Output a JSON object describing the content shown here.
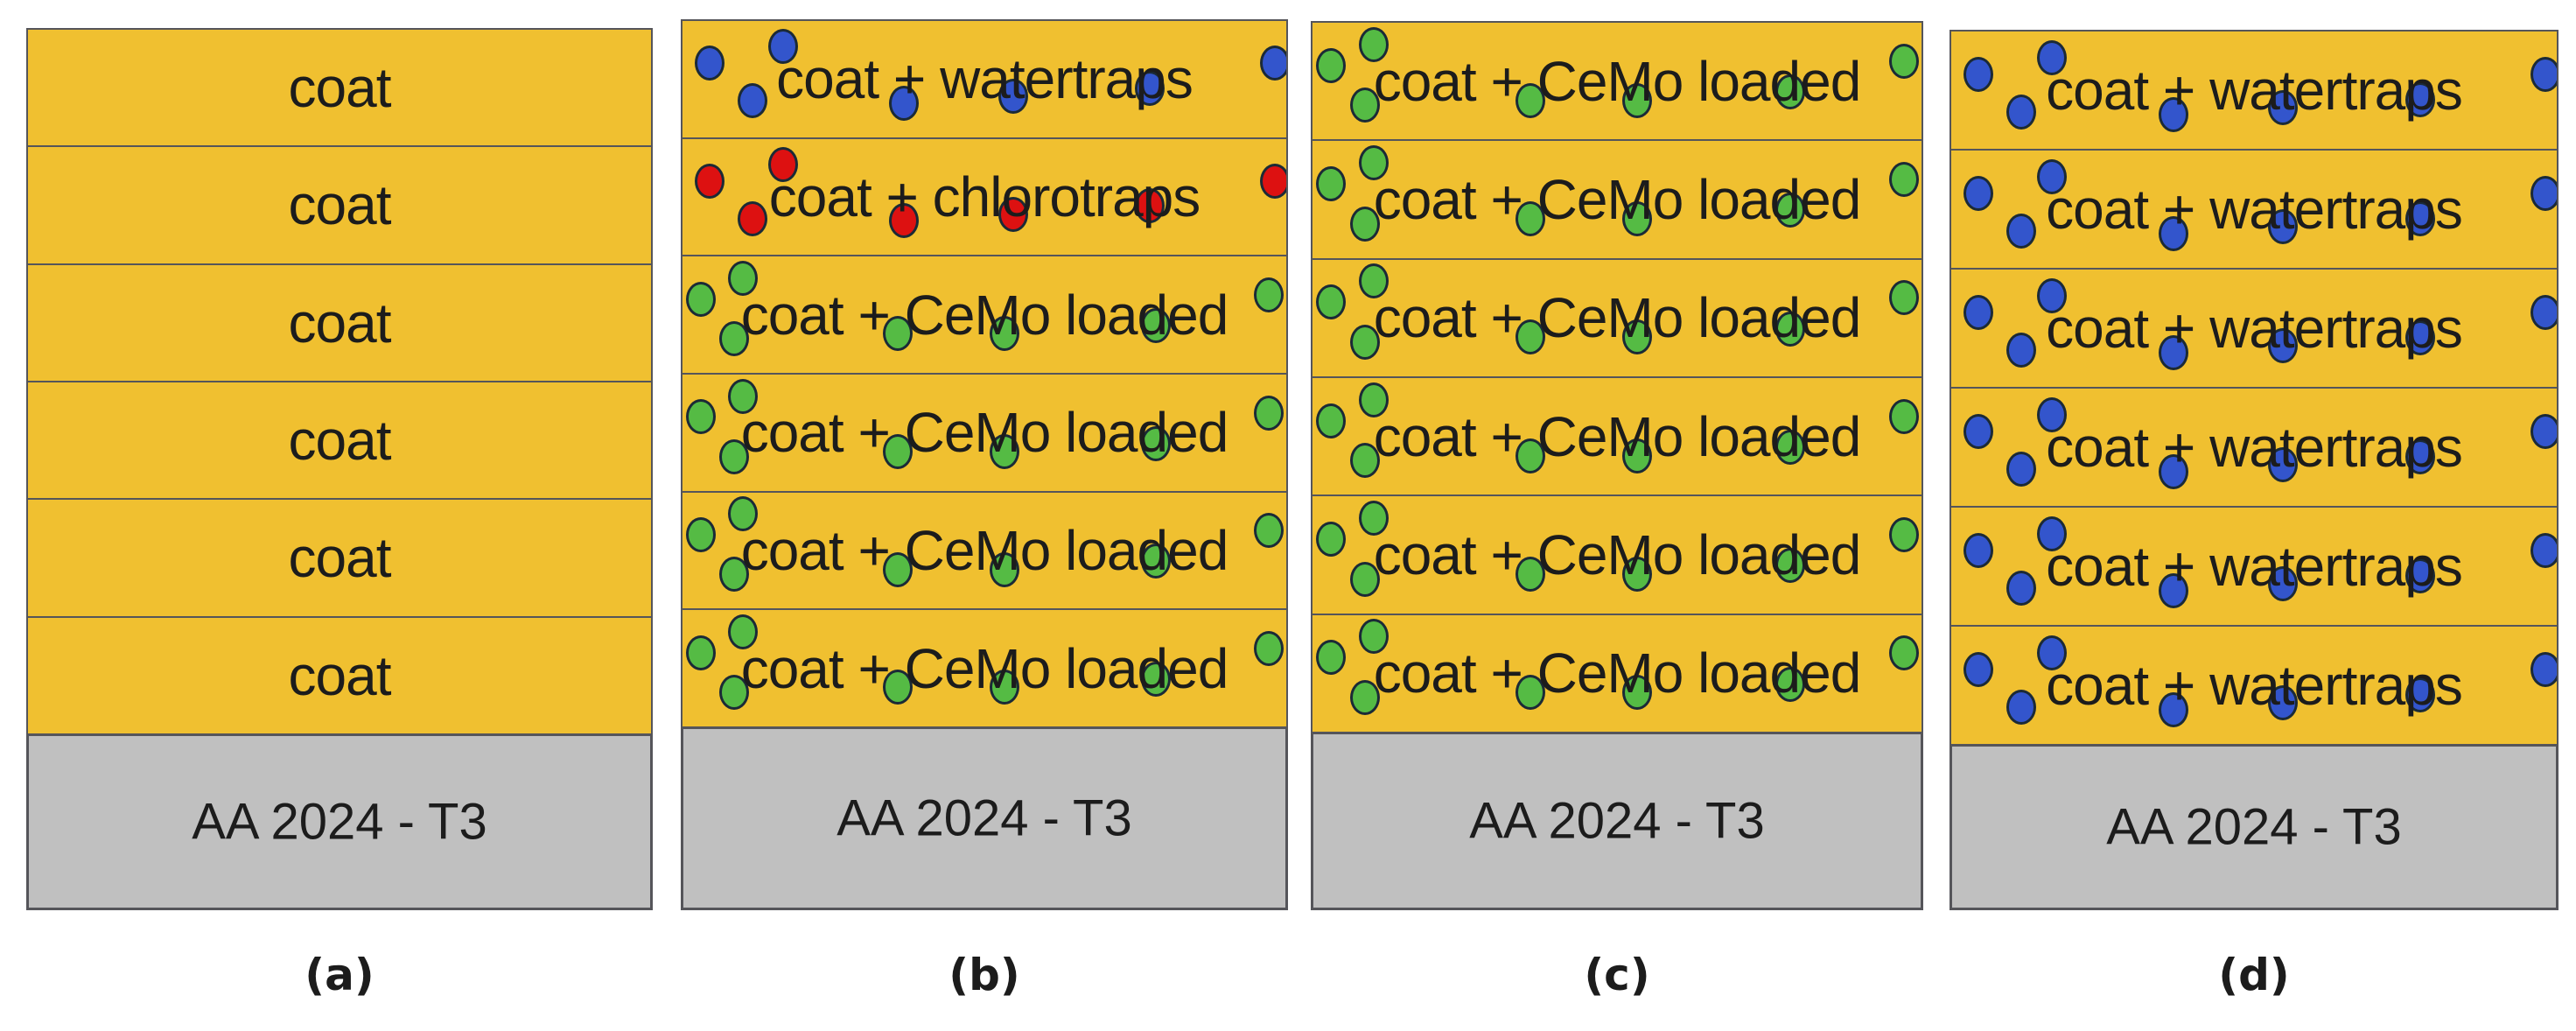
{
  "colors": {
    "coat": "#f0c030",
    "substrate": "#c0c0c0",
    "border": "#55555a",
    "watertrap": "#3355cc",
    "chlorotrap": "#dd1111",
    "cemo": "#55bb44"
  },
  "panels": [
    {
      "caption": "(a)",
      "substrate": "AA 2024 - T3",
      "layers": [
        {
          "label": "coat",
          "particles": "none"
        },
        {
          "label": "coat",
          "particles": "none"
        },
        {
          "label": "coat",
          "particles": "none"
        },
        {
          "label": "coat",
          "particles": "none"
        },
        {
          "label": "coat",
          "particles": "none"
        },
        {
          "label": "coat",
          "particles": "none"
        }
      ]
    },
    {
      "caption": "(b)",
      "substrate": "AA 2024 - T3",
      "layers": [
        {
          "label": "coat + watertraps",
          "particles": "watertrap"
        },
        {
          "label": "coat + chlorotraps",
          "particles": "chlorotrap"
        },
        {
          "label": "coat + CeMo loaded",
          "particles": "cemo"
        },
        {
          "label": "coat + CeMo loaded",
          "particles": "cemo"
        },
        {
          "label": "coat + CeMo loaded",
          "particles": "cemo"
        },
        {
          "label": "coat + CeMo loaded",
          "particles": "cemo"
        }
      ]
    },
    {
      "caption": "(c)",
      "substrate": "AA 2024 - T3",
      "layers": [
        {
          "label": "coat + CeMo loaded",
          "particles": "cemo"
        },
        {
          "label": "coat + CeMo loaded",
          "particles": "cemo"
        },
        {
          "label": "coat + CeMo loaded",
          "particles": "cemo"
        },
        {
          "label": "coat + CeMo loaded",
          "particles": "cemo"
        },
        {
          "label": "coat + CeMo loaded",
          "particles": "cemo"
        },
        {
          "label": "coat + CeMo loaded",
          "particles": "cemo"
        }
      ]
    },
    {
      "caption": "(d)",
      "substrate": "AA 2024 - T3",
      "layers": [
        {
          "label": "coat + watertraps",
          "particles": "watertrap"
        },
        {
          "label": "coat + watertraps",
          "particles": "watertrap"
        },
        {
          "label": "coat + watertraps",
          "particles": "watertrap"
        },
        {
          "label": "coat + watertraps",
          "particles": "watertrap"
        },
        {
          "label": "coat + watertraps",
          "particles": "watertrap"
        },
        {
          "label": "coat + watertraps",
          "particles": "watertrap"
        }
      ]
    }
  ]
}
